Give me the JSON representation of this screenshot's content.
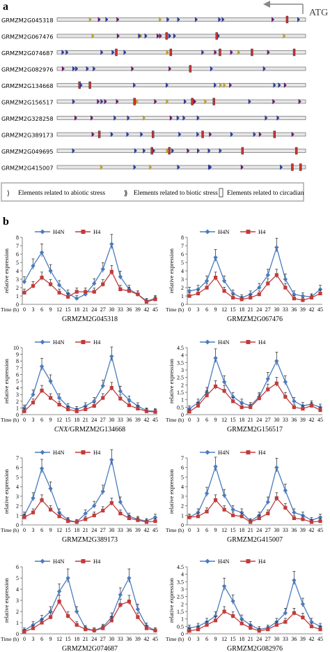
{
  "panel_a": {
    "label": "a",
    "atg_label": "ATG",
    "genes": [
      "GRMZM2G045318",
      "GRMZM2G067476",
      "GRMZM2G074687",
      "GRMZM2G082976",
      "GRMZM2G134668",
      "GRMZM2G156517",
      "GRMZM2G328258",
      "GRMZM2G389173",
      "GRMZM2G049695",
      "GRMZM2G415007"
    ],
    "legend": {
      "abiotic": "Elements related to abiotic stress",
      "biotic": "Elements related to biotic stress",
      "circadian": "Elements related to circadian"
    },
    "colors": {
      "bar_fill": "#e6e6e6",
      "abiotic": "#2e3b9b",
      "biotic": "#6a1a6a",
      "circadian": "#d03030",
      "misc": "#b8a12a"
    }
  },
  "panel_b": {
    "label": "b"
  },
  "chart_data": [
    {
      "type": "line",
      "title": "GRMZM2G045318",
      "xlabel": "Time (h)",
      "ylabel": "relative expression",
      "x": [
        0,
        3,
        6,
        9,
        12,
        15,
        18,
        21,
        24,
        27,
        30,
        33,
        36,
        39,
        42,
        45
      ],
      "ylim": [
        0,
        8
      ],
      "yticks": [
        0,
        1,
        2,
        3,
        4,
        5,
        6,
        7,
        8
      ],
      "series": [
        {
          "name": "H4N",
          "color": "#4a7bbf",
          "values": [
            2.7,
            4.6,
            6.2,
            4.0,
            2.3,
            1.3,
            0.7,
            1.2,
            2.5,
            4.2,
            7.2,
            3.3,
            1.8,
            1.2,
            0.4,
            0.7
          ]
        },
        {
          "name": "H4",
          "color": "#c23b3b",
          "values": [
            1.4,
            2.2,
            3.2,
            2.4,
            1.4,
            0.9,
            1.5,
            1.5,
            1.5,
            2.4,
            3.9,
            1.8,
            1.6,
            1.2,
            0.3,
            0.6
          ]
        }
      ]
    },
    {
      "type": "line",
      "title": "GRMZM2G067476",
      "xlabel": "Time (h)",
      "ylabel": "relative expression",
      "x": [
        0,
        3,
        6,
        9,
        12,
        15,
        18,
        21,
        24,
        27,
        30,
        33,
        36,
        39,
        42,
        45
      ],
      "ylim": [
        0,
        8
      ],
      "yticks": [
        0,
        1,
        2,
        3,
        4,
        5,
        6,
        7,
        8
      ],
      "series": [
        {
          "name": "H4N",
          "color": "#4a7bbf",
          "values": [
            1.6,
            1.8,
            2.8,
            5.6,
            2.8,
            1.3,
            0.8,
            1.2,
            2.0,
            3.5,
            6.8,
            3.0,
            1.2,
            1.0,
            0.9,
            1.8
          ]
        },
        {
          "name": "H4",
          "color": "#c23b3b",
          "values": [
            1.0,
            1.3,
            2.0,
            3.2,
            1.6,
            0.8,
            0.6,
            0.8,
            1.2,
            2.5,
            3.5,
            2.0,
            0.7,
            0.5,
            0.8,
            1.3
          ]
        }
      ]
    },
    {
      "type": "line",
      "title": "CNX/GRMZM2G134668",
      "title_italic": "CNX",
      "title_rest": "/GRMZM2G134668",
      "xlabel": "Time (h)",
      "ylabel": "relative expression",
      "x": [
        0,
        3,
        6,
        9,
        12,
        15,
        18,
        21,
        24,
        27,
        30,
        33,
        36,
        39,
        42,
        45
      ],
      "ylim": [
        0,
        10
      ],
      "yticks": [
        0,
        1,
        2,
        3,
        4,
        5,
        6,
        7,
        8,
        9,
        10
      ],
      "series": [
        {
          "name": "H4N",
          "color": "#4a7bbf",
          "values": [
            1.0,
            3.0,
            7.2,
            5.0,
            2.5,
            1.2,
            0.8,
            1.3,
            2.0,
            4.3,
            8.7,
            3.5,
            2.2,
            1.3,
            0.6,
            0.5
          ]
        },
        {
          "name": "H4",
          "color": "#c23b3b",
          "values": [
            0.5,
            1.8,
            3.6,
            2.5,
            1.5,
            0.8,
            0.5,
            0.8,
            1.3,
            2.5,
            4.0,
            2.4,
            1.4,
            0.9,
            0.5,
            0.4
          ]
        }
      ]
    },
    {
      "type": "line",
      "title": "GRMZM2G156517",
      "xlabel": "Time (h)",
      "ylabel": "relative expression",
      "x": [
        0,
        3,
        6,
        9,
        12,
        15,
        18,
        21,
        24,
        27,
        30,
        33,
        36,
        39,
        42,
        45
      ],
      "ylim": [
        0,
        4.5
      ],
      "yticks": [
        0,
        0.5,
        1,
        1.5,
        2,
        2.5,
        3,
        3.5,
        4,
        4.5
      ],
      "series": [
        {
          "name": "H4N",
          "color": "#4a7bbf",
          "values": [
            0.4,
            0.8,
            1.5,
            3.8,
            2.2,
            1.2,
            0.8,
            0.6,
            1.2,
            2.4,
            3.6,
            2.2,
            0.9,
            0.6,
            0.7,
            0.5
          ]
        },
        {
          "name": "H4",
          "color": "#c23b3b",
          "values": [
            0.2,
            0.6,
            1.3,
            1.9,
            1.6,
            0.9,
            0.5,
            0.5,
            1.1,
            1.7,
            2.1,
            1.2,
            0.5,
            0.4,
            0.6,
            0.3
          ]
        }
      ]
    },
    {
      "type": "line",
      "title": "GRMZM2G389173",
      "xlabel": "Time (h)",
      "ylabel": "relative expression",
      "x": [
        0,
        3,
        6,
        9,
        12,
        15,
        18,
        21,
        24,
        27,
        30,
        33,
        36,
        39,
        42,
        45
      ],
      "ylim": [
        0,
        7
      ],
      "yticks": [
        0,
        1,
        2,
        3,
        4,
        5,
        6,
        7
      ],
      "series": [
        {
          "name": "H4N",
          "color": "#4a7bbf",
          "values": [
            1.0,
            2.8,
            5.9,
            3.8,
            1.3,
            0.5,
            0.3,
            1.2,
            2.0,
            3.5,
            6.8,
            2.4,
            0.9,
            0.6,
            0.4,
            0.8
          ]
        },
        {
          "name": "H4",
          "color": "#c23b3b",
          "values": [
            0.8,
            1.3,
            2.6,
            1.6,
            0.9,
            0.4,
            0.3,
            0.6,
            1.0,
            1.5,
            2.3,
            1.2,
            0.7,
            0.5,
            0.3,
            0.4
          ]
        }
      ]
    },
    {
      "type": "line",
      "title": "GRMZM2G415007",
      "xlabel": "Time (h)",
      "ylabel": "relative expression",
      "x": [
        0,
        3,
        6,
        9,
        12,
        15,
        18,
        21,
        24,
        27,
        30,
        33,
        36,
        39,
        42,
        45
      ],
      "ylim": [
        0,
        7
      ],
      "yticks": [
        0,
        1,
        2,
        3,
        4,
        5,
        6,
        7
      ],
      "series": [
        {
          "name": "H4N",
          "color": "#4a7bbf",
          "values": [
            0.8,
            1.3,
            3.3,
            6.1,
            3.1,
            1.6,
            1.3,
            0.4,
            1.0,
            2.4,
            6.0,
            3.6,
            1.3,
            1.0,
            0.5,
            0.8
          ]
        },
        {
          "name": "H4",
          "color": "#c23b3b",
          "values": [
            0.8,
            0.9,
            1.4,
            2.6,
            1.6,
            1.0,
            0.9,
            0.3,
            0.7,
            1.2,
            2.8,
            1.8,
            0.7,
            0.6,
            0.3,
            0.4
          ]
        }
      ]
    },
    {
      "type": "line",
      "title": "GRMZM2G074687",
      "xlabel": "Time (h)",
      "ylabel": "relative expression",
      "x": [
        0,
        3,
        6,
        9,
        12,
        15,
        18,
        21,
        24,
        27,
        30,
        33,
        36,
        39,
        42,
        45
      ],
      "ylim": [
        0,
        6
      ],
      "yticks": [
        0,
        1,
        2,
        3,
        4,
        5,
        6
      ],
      "series": [
        {
          "name": "H4N",
          "color": "#4a7bbf",
          "values": [
            0.3,
            0.8,
            1.3,
            2.0,
            3.8,
            5.0,
            2.0,
            0.5,
            0.3,
            0.6,
            1.5,
            3.5,
            5.0,
            2.2,
            0.7,
            0.3
          ]
        },
        {
          "name": "H4",
          "color": "#c23b3b",
          "values": [
            0.2,
            0.5,
            1.0,
            1.5,
            2.9,
            1.6,
            0.8,
            0.4,
            0.3,
            0.5,
            1.2,
            2.6,
            2.9,
            1.5,
            0.5,
            0.3
          ]
        }
      ]
    },
    {
      "type": "line",
      "title": "GRMZM2G082976",
      "xlabel": "Time (h)",
      "ylabel": "relative expression",
      "x": [
        0,
        3,
        6,
        9,
        12,
        15,
        18,
        21,
        24,
        27,
        30,
        33,
        36,
        39,
        42,
        45
      ],
      "ylim": [
        0,
        4.5
      ],
      "yticks": [
        0,
        0.5,
        1,
        1.5,
        2,
        2.5,
        3,
        3.5,
        4,
        4.5
      ],
      "series": [
        {
          "name": "H4N",
          "color": "#4a7bbf",
          "values": [
            0.4,
            0.5,
            0.8,
            1.2,
            3.2,
            2.2,
            1.0,
            0.6,
            0.3,
            0.4,
            0.8,
            1.4,
            3.6,
            2.0,
            0.8,
            0.5
          ]
        },
        {
          "name": "H4",
          "color": "#c23b3b",
          "values": [
            0.2,
            0.3,
            0.6,
            0.9,
            1.5,
            1.2,
            0.7,
            0.4,
            0.2,
            0.3,
            0.6,
            0.8,
            1.4,
            1.1,
            0.5,
            0.3
          ]
        }
      ]
    }
  ]
}
